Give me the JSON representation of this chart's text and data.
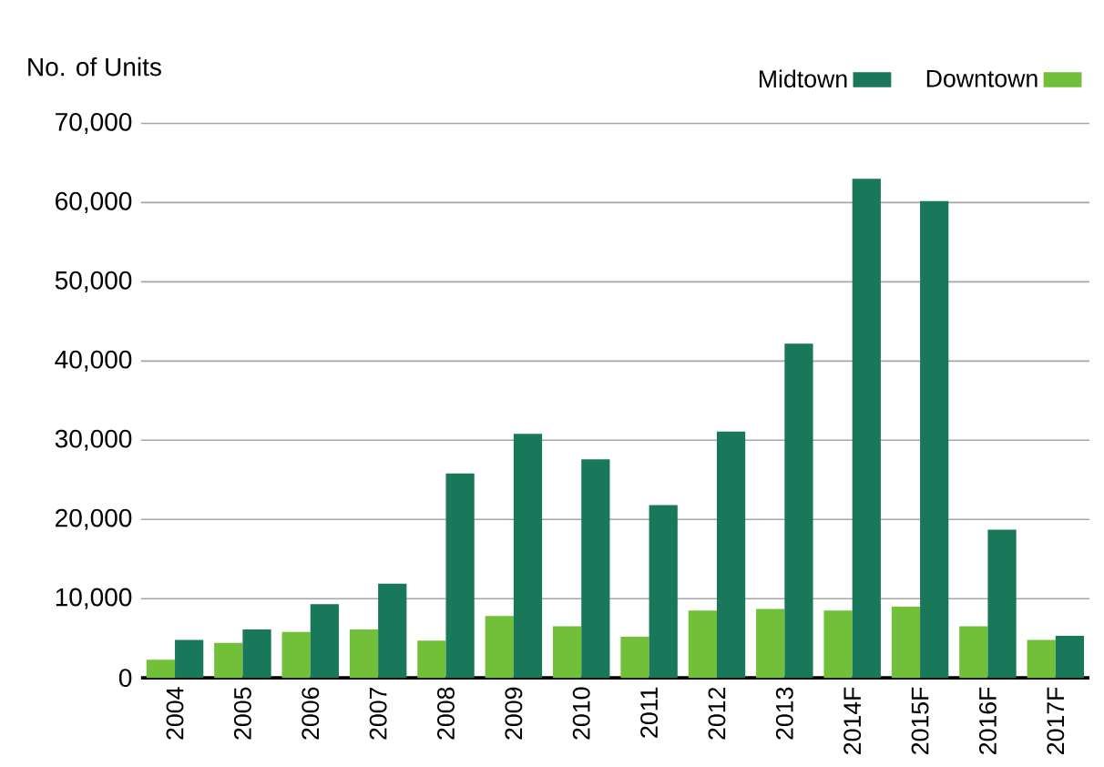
{
  "chart_data": {
    "type": "bar",
    "ylabel": "No. of Units",
    "categories": [
      "2004",
      "2005",
      "2006",
      "2007",
      "2008",
      "2009",
      "2010",
      "2011",
      "2012",
      "2013",
      "2014F",
      "2015F",
      "2016F",
      "2017F"
    ],
    "series": [
      {
        "name": "Downtown",
        "color": "#72bf3a",
        "values": [
          2300,
          4400,
          5800,
          6100,
          4700,
          7800,
          6500,
          5200,
          8500,
          8700,
          8500,
          9000,
          6500,
          4800
        ]
      },
      {
        "name": "Midtown",
        "color": "#19775a",
        "values": [
          4800,
          6100,
          9300,
          11900,
          25800,
          30800,
          27600,
          21800,
          31100,
          42200,
          63000,
          60200,
          18700,
          5300
        ]
      }
    ],
    "ylim": [
      0,
      70000
    ],
    "yticks": [
      {
        "value": 0,
        "label": "0"
      },
      {
        "value": 10000,
        "label": "10,000"
      },
      {
        "value": 20000,
        "label": "20,000"
      },
      {
        "value": 30000,
        "label": "30,000"
      },
      {
        "value": 40000,
        "label": "40,000"
      },
      {
        "value": 50000,
        "label": "50,000"
      },
      {
        "value": 60000,
        "label": "60,000"
      },
      {
        "value": 70000,
        "label": "70,000"
      }
    ],
    "grid": "y",
    "legend": "top right"
  }
}
